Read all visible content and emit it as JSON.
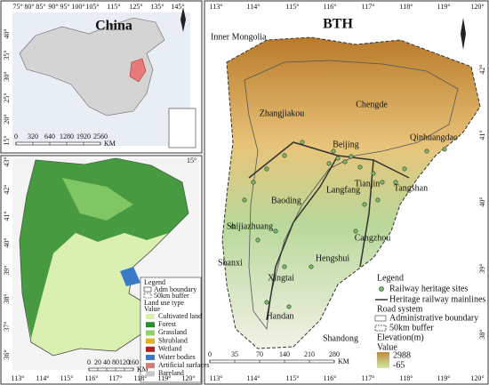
{
  "china_map": {
    "title": "China",
    "lon_labels": [
      "75°",
      "80°",
      "85°",
      "90°",
      "95°",
      "100°",
      "105°",
      "115°",
      "125°",
      "135°",
      "145°"
    ],
    "lat_labels": [
      "40°",
      "35°",
      "30°",
      "25°",
      "20°",
      "15°"
    ],
    "scale_labels": [
      "0",
      "320",
      "640",
      "1280",
      "1920",
      "2560"
    ],
    "scale_unit": "KM"
  },
  "land_use_map": {
    "corner_label": "15°",
    "lat_labels": [
      "43°",
      "42°",
      "41°",
      "40°",
      "39°",
      "38°",
      "37°",
      "36°"
    ],
    "lon_labels": [
      "113°",
      "114°",
      "115°",
      "116°",
      "117°",
      "118°",
      "119°",
      "120°"
    ],
    "scale_labels": [
      "0",
      "20",
      "40",
      "80",
      "120",
      "160"
    ],
    "scale_unit": "KM",
    "legend": {
      "title": "Legend",
      "adm_boundary": "Adm boundary",
      "buffer": "50km buffer",
      "land_use_title": "Land use type",
      "value_title": "Value",
      "items": [
        {
          "label": "Cultivated land",
          "color": "#d9f0b0"
        },
        {
          "label": "Forest",
          "color": "#2e8b2e"
        },
        {
          "label": "Grassland",
          "color": "#8fd16a"
        },
        {
          "label": "Shrubland",
          "color": "#e0b020"
        },
        {
          "label": "Wetland",
          "color": "#b22222"
        },
        {
          "label": "Water bodies",
          "color": "#3a78c8"
        },
        {
          "label": "Artificial surfaces",
          "color": "#d07a7a"
        },
        {
          "label": "Bareland",
          "color": "#c8c8c8"
        }
      ]
    }
  },
  "bth_map": {
    "title": "BTH",
    "lon_labels": [
      "113°",
      "114°",
      "115°",
      "116°",
      "117°",
      "118°",
      "119°",
      "120°"
    ],
    "lat_labels": [
      "42°",
      "41°",
      "40°",
      "39°",
      "38°"
    ],
    "places": [
      "Inner Mongolia",
      "Zhangjiakou",
      "Chengde",
      "Beijing",
      "Qinhuangdao",
      "Tianjin",
      "Langfang",
      "Tangshan",
      "Baoding",
      "Shijiazhuang",
      "Cangzhou",
      "Hengshui",
      "Shanxi",
      "Xingtai",
      "Handan",
      "Shandong"
    ],
    "scale_labels": [
      "0",
      "35",
      "70",
      "140",
      "210",
      "280"
    ],
    "scale_unit": "KM",
    "legend": {
      "title": "Legend",
      "heritage_sites": "Railway heritage sites",
      "mainlines": "Heritage railway mainlines",
      "roads": "Road system",
      "admin": "Administrative boundary",
      "buffer": "50km buffer",
      "elevation_title": "Elevation(m)",
      "value_title": "Value",
      "high": "2988",
      "low": "-65"
    }
  }
}
